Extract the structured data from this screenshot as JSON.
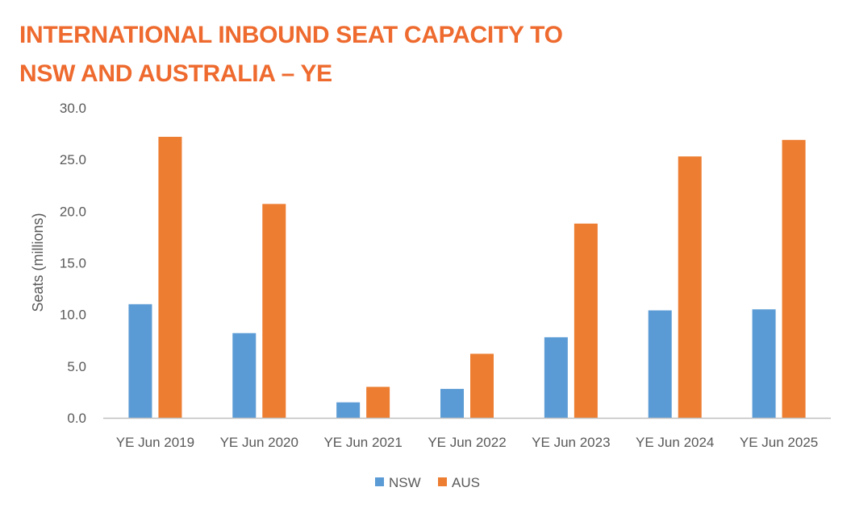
{
  "title": {
    "line1": "INTERNATIONAL INBOUND SEAT CAPACITY TO",
    "line2": "NSW AND AUSTRALIA – YE"
  },
  "colors": {
    "title": "#ee6a2e",
    "nsw": "#5b9bd5",
    "aus": "#ed7d31",
    "axis": "#bfbfbf",
    "text": "#595959"
  },
  "chart_data": {
    "type": "bar",
    "title": "INTERNATIONAL INBOUND SEAT CAPACITY TO NSW AND AUSTRALIA – YE",
    "xlabel": "",
    "ylabel": "Seats (millions)",
    "ylim": [
      0,
      30
    ],
    "yticks": [
      "0.0",
      "5.0",
      "10.0",
      "15.0",
      "20.0",
      "25.0",
      "30.0"
    ],
    "grid": false,
    "legend_position": "bottom",
    "categories": [
      "YE Jun 2019",
      "YE Jun 2020",
      "YE Jun 2021",
      "YE Jun 2022",
      "YE Jun 2023",
      "YE Jun 2024",
      "YE Jun 2025"
    ],
    "series": [
      {
        "name": "NSW",
        "values": [
          11.0,
          8.2,
          1.5,
          2.8,
          7.8,
          10.4,
          10.5
        ]
      },
      {
        "name": "AUS",
        "values": [
          27.2,
          20.7,
          3.0,
          6.2,
          18.8,
          25.3,
          26.9
        ]
      }
    ]
  }
}
